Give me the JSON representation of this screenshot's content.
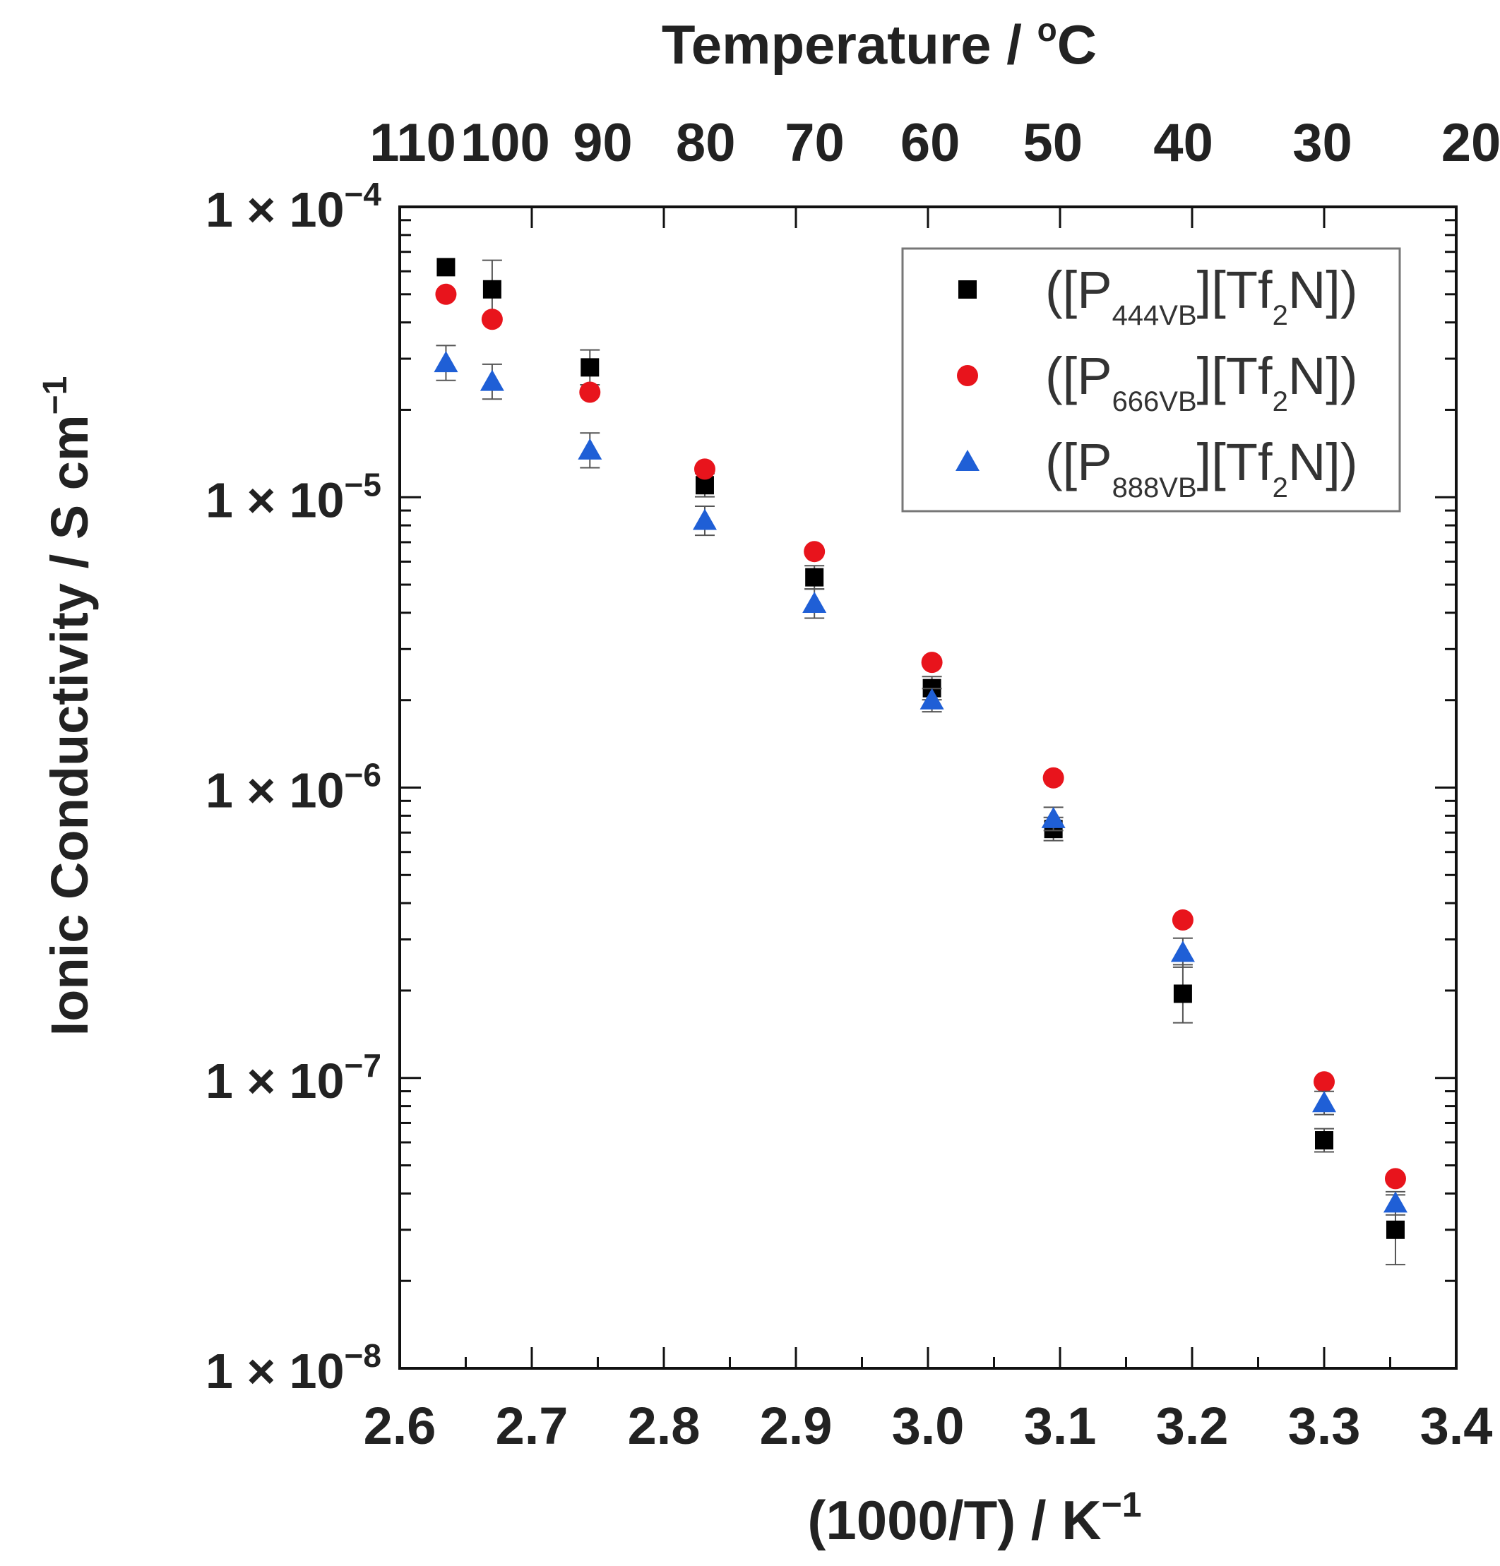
{
  "chart_data": {
    "type": "scatter",
    "title": "",
    "xlabel": "(1000/T) / K",
    "xlabel_sup": "−1",
    "ylabel": "Ionic Conductivity / S cm",
    "ylabel_sup": "−1",
    "top_axis_label": "Temperature / ",
    "top_axis_label_deg": "o",
    "top_axis_label_unit": "C",
    "yscale": "log",
    "xlim": [
      2.6,
      3.4
    ],
    "ylim": [
      1e-08,
      0.0001
    ],
    "x_ticks": [
      {
        "value": 2.6,
        "label": "2.6"
      },
      {
        "value": 2.7,
        "label": "2.7"
      },
      {
        "value": 2.8,
        "label": "2.8"
      },
      {
        "value": 2.9,
        "label": "2.9"
      },
      {
        "value": 3.0,
        "label": "3.0"
      },
      {
        "value": 3.1,
        "label": "3.1"
      },
      {
        "value": 3.2,
        "label": "3.2"
      },
      {
        "value": 3.3,
        "label": "3.3"
      },
      {
        "value": 3.4,
        "label": "3.4"
      }
    ],
    "y_ticks": [
      {
        "value": 0.0001,
        "mantissa": "1 × 10",
        "exponent": "−4"
      },
      {
        "value": 1e-05,
        "mantissa": "1 × 10",
        "exponent": "−5"
      },
      {
        "value": 1e-06,
        "mantissa": "1 × 10",
        "exponent": "−6"
      },
      {
        "value": 1e-07,
        "mantissa": "1 × 10",
        "exponent": "−7"
      },
      {
        "value": 1e-08,
        "mantissa": "1 × 10",
        "exponent": "−8"
      }
    ],
    "top_ticks": [
      {
        "celsius": 110,
        "label": "110"
      },
      {
        "celsius": 100,
        "label": "100"
      },
      {
        "celsius": 90,
        "label": "90"
      },
      {
        "celsius": 80,
        "label": "80"
      },
      {
        "celsius": 70,
        "label": "70"
      },
      {
        "celsius": 60,
        "label": "60"
      },
      {
        "celsius": 50,
        "label": "50"
      },
      {
        "celsius": 40,
        "label": "40"
      },
      {
        "celsius": 30,
        "label": "30"
      },
      {
        "celsius": 20,
        "label": "20"
      }
    ],
    "legend": {
      "position": "top-right"
    },
    "series": [
      {
        "name": "([P444VB][Tf2N])",
        "legend_prefix": "([P",
        "legend_sub1": "444VB",
        "legend_mid": "][Tf",
        "legend_sub2": "2",
        "legend_suffix": "N])",
        "marker": "square",
        "color": "#000000",
        "x": [
          2.635,
          2.67,
          2.744,
          2.831,
          2.914,
          3.003,
          3.095,
          3.193,
          3.3,
          3.354
        ],
        "y": [
          6.2e-05,
          5.2e-05,
          2.8e-05,
          1.1e-05,
          5.3e-06,
          2.2e-06,
          7.2e-07,
          1.95e-07,
          6.1e-08,
          3e-08
        ],
        "err": [
          0,
          0.1,
          0.06,
          0.04,
          0.04,
          0.04,
          0.04,
          0.1,
          0.04,
          0.12
        ]
      },
      {
        "name": "([P666VB][Tf2N])",
        "legend_prefix": "([P",
        "legend_sub1": "666VB",
        "legend_mid": "][Tf",
        "legend_sub2": "2",
        "legend_suffix": "N])",
        "marker": "circle",
        "color": "#e8141c",
        "x": [
          2.635,
          2.67,
          2.744,
          2.831,
          2.914,
          3.003,
          3.095,
          3.193,
          3.3,
          3.354
        ],
        "y": [
          5e-05,
          4.1e-05,
          2.3e-05,
          1.25e-05,
          6.5e-06,
          2.7e-06,
          1.08e-06,
          3.5e-07,
          9.7e-08,
          4.5e-08
        ],
        "err": [
          0,
          0,
          0,
          0,
          0,
          0,
          0,
          0,
          0,
          0
        ]
      },
      {
        "name": "([P888VB][Tf2N])",
        "legend_prefix": "([P",
        "legend_sub1": "888VB",
        "legend_mid": "][Tf",
        "legend_sub2": "2",
        "legend_suffix": "N])",
        "marker": "triangle",
        "color": "#1f5fd6",
        "x": [
          2.635,
          2.67,
          2.744,
          2.831,
          2.914,
          3.003,
          3.095,
          3.193,
          3.3,
          3.354
        ],
        "y": [
          2.9e-05,
          2.5e-05,
          1.45e-05,
          8.3e-06,
          4.3e-06,
          2e-06,
          7.8e-07,
          2.7e-07,
          8.2e-08,
          3.7e-08
        ],
        "err": [
          0.06,
          0.06,
          0.06,
          0.05,
          0.05,
          0.04,
          0.04,
          0.05,
          0.04,
          0.04
        ]
      }
    ]
  }
}
